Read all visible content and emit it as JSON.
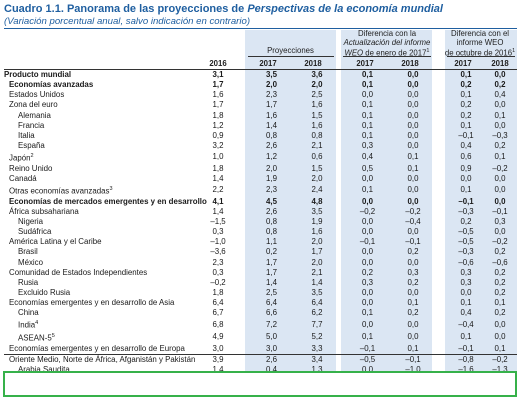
{
  "title": {
    "number": "Cuadro 1.1.",
    "text_before": "Panorama de las proyecciones de ",
    "italic": "Perspectivas de la economía mundial"
  },
  "subtitle": "(Variación porcentual anual, salvo indicación en contrario)",
  "header": {
    "projections": "Proyecciones",
    "diff_jan_1": "Diferencia con la",
    "diff_jan_2": "Actualización del informe",
    "diff_jan_3a": "WEO",
    "diff_jan_3b": " de enero de 2017",
    "diff_jan_sup": "1",
    "diff_oct_1": "Diferencia con el",
    "diff_oct_2": "informe WEO",
    "diff_oct_3": "de octubre de 2016",
    "diff_oct_sup": "1",
    "years": [
      "2016",
      "2017",
      "2018",
      "2017",
      "2018",
      "2017",
      "2018"
    ]
  },
  "rows": [
    {
      "label": "Producto mundial",
      "bold": true,
      "indent": 0,
      "values": [
        "3,1",
        "3,5",
        "3,6",
        "0,1",
        "0,0",
        "0,1",
        "0,0"
      ]
    },
    {
      "label": "Economías avanzadas",
      "bold": true,
      "indent": 1,
      "values": [
        "1,7",
        "2,0",
        "2,0",
        "0,1",
        "0,0",
        "0,2",
        "0,2"
      ]
    },
    {
      "label": "Estados Unidos",
      "indent": 1,
      "values": [
        "1,6",
        "2,3",
        "2,5",
        "0,0",
        "0,0",
        "0,1",
        "0,4"
      ]
    },
    {
      "label": "Zona del euro",
      "indent": 1,
      "values": [
        "1,7",
        "1,7",
        "1,6",
        "0,1",
        "0,0",
        "0,2",
        "0,0"
      ]
    },
    {
      "label": "Alemania",
      "indent": 2,
      "values": [
        "1,8",
        "1,6",
        "1,5",
        "0,1",
        "0,0",
        "0,2",
        "0,1"
      ]
    },
    {
      "label": "Francia",
      "indent": 2,
      "values": [
        "1,2",
        "1,4",
        "1,6",
        "0,1",
        "0,0",
        "0,1",
        "0,0"
      ]
    },
    {
      "label": "Italia",
      "indent": 2,
      "values": [
        "0,9",
        "0,8",
        "0,8",
        "0,1",
        "0,0",
        "–0,1",
        "–0,3"
      ]
    },
    {
      "label": "España",
      "indent": 2,
      "values": [
        "3,2",
        "2,6",
        "2,1",
        "0,3",
        "0,0",
        "0,4",
        "0,2"
      ]
    },
    {
      "label": "Japón",
      "sup": "2",
      "indent": 1,
      "values": [
        "1,0",
        "1,2",
        "0,6",
        "0,4",
        "0,1",
        "0,6",
        "0,1"
      ]
    },
    {
      "label": "Reino Unido",
      "indent": 1,
      "values": [
        "1,8",
        "2,0",
        "1,5",
        "0,5",
        "0,1",
        "0,9",
        "–0,2"
      ]
    },
    {
      "label": "Canadá",
      "indent": 1,
      "values": [
        "1,4",
        "1,9",
        "2,0",
        "0,0",
        "0,0",
        "0,0",
        "0,0"
      ]
    },
    {
      "label": "Otras economías avanzadas",
      "sup": "3",
      "indent": 1,
      "values": [
        "2,2",
        "2,3",
        "2,4",
        "0,1",
        "0,0",
        "0,1",
        "0,0"
      ]
    },
    {
      "label": "Economías de mercados emergentes y en desarrollo",
      "bold": true,
      "indent": 1,
      "values": [
        "4,1",
        "4,5",
        "4,8",
        "0,0",
        "0,0",
        "–0,1",
        "0,0"
      ]
    },
    {
      "label": "África subsahariana",
      "indent": 1,
      "values": [
        "1,4",
        "2,6",
        "3,5",
        "–0,2",
        "–0,2",
        "–0,3",
        "–0,1"
      ]
    },
    {
      "label": "Nigeria",
      "indent": 2,
      "values": [
        "–1,5",
        "0,8",
        "1,9",
        "0,0",
        "–0,4",
        "0,2",
        "0,3"
      ]
    },
    {
      "label": "Sudáfrica",
      "indent": 2,
      "values": [
        "0,3",
        "0,8",
        "1,6",
        "0,0",
        "0,0",
        "–0,5",
        "0,0"
      ]
    },
    {
      "label": "América Latina y el Caribe",
      "indent": 1,
      "values": [
        "–1,0",
        "1,1",
        "2,0",
        "–0,1",
        "–0,1",
        "–0,5",
        "–0,2"
      ]
    },
    {
      "label": "Brasil",
      "indent": 2,
      "values": [
        "–3,6",
        "0,2",
        "1,7",
        "0,0",
        "0,2",
        "–0,3",
        "0,2"
      ]
    },
    {
      "label": "México",
      "indent": 2,
      "values": [
        "2,3",
        "1,7",
        "2,0",
        "0,0",
        "0,0",
        "–0,6",
        "–0,6"
      ]
    },
    {
      "label": "Comunidad de Estados Independientes",
      "indent": 1,
      "values": [
        "0,3",
        "1,7",
        "2,1",
        "0,2",
        "0,3",
        "0,3",
        "0,2"
      ]
    },
    {
      "label": "Rusia",
      "indent": 2,
      "values": [
        "–0,2",
        "1,4",
        "1,4",
        "0,3",
        "0,2",
        "0,3",
        "0,2"
      ]
    },
    {
      "label": "Excluido Rusia",
      "indent": 2,
      "values": [
        "1,8",
        "2,5",
        "3,5",
        "0,0",
        "0,0",
        "0,0",
        "0,2"
      ]
    },
    {
      "label": "Economías emergentes y en desarrollo de Asia",
      "indent": 1,
      "values": [
        "6,4",
        "6,4",
        "6,4",
        "0,0",
        "0,1",
        "0,1",
        "0,1"
      ]
    },
    {
      "label": "China",
      "indent": 2,
      "values": [
        "6,7",
        "6,6",
        "6,2",
        "0,1",
        "0,2",
        "0,4",
        "0,2"
      ]
    },
    {
      "label": "India",
      "sup": "4",
      "indent": 2,
      "values": [
        "6,8",
        "7,2",
        "7,7",
        "0,0",
        "0,0",
        "–0,4",
        "0,0"
      ]
    },
    {
      "label": "ASEAN-5",
      "sup": "5",
      "indent": 2,
      "values": [
        "4,9",
        "5,0",
        "5,2",
        "0,1",
        "0,0",
        "0,1",
        "0,0"
      ]
    },
    {
      "label": "Economías emergentes y en desarrollo de Europa",
      "indent": 1,
      "values": [
        "3,0",
        "3,0",
        "3,3",
        "–0,1",
        "0,1",
        "–0,1",
        "0,1"
      ]
    },
    {
      "label": "Oriente Medio, Norte de África, Afganistán y Pakistán",
      "indent": 1,
      "sep": true,
      "values": [
        "3,9",
        "2,6",
        "3,4",
        "–0,5",
        "–0,1",
        "–0,8",
        "–0,2"
      ]
    },
    {
      "label": "Arabia Saudita",
      "indent": 2,
      "values": [
        "1,4",
        "0,4",
        "1,3",
        "0,0",
        "–1,0",
        "–1,6",
        "–1,3"
      ]
    }
  ]
}
